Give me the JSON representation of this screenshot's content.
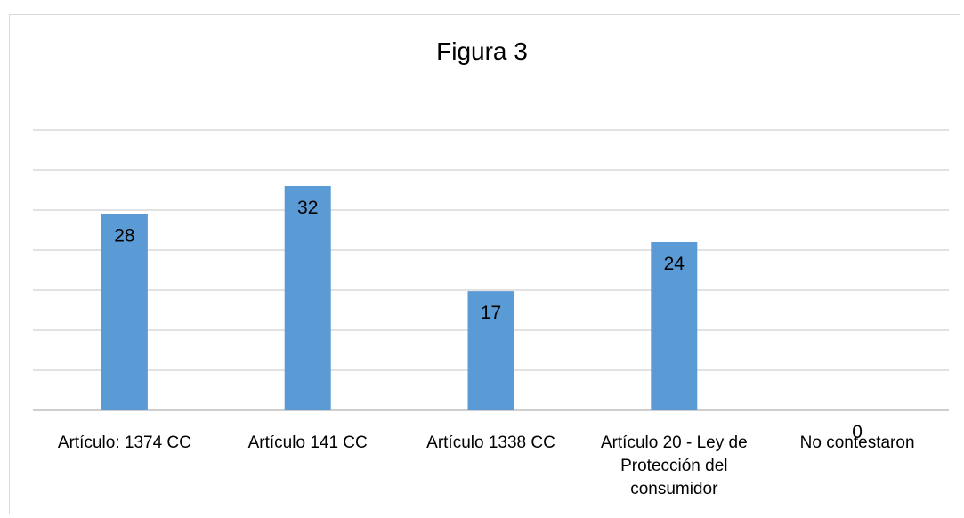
{
  "chart_data": {
    "type": "bar",
    "title": "Figura 3",
    "categories": [
      [
        "Artículo: 1374 CC"
      ],
      [
        "Artículo 141 CC"
      ],
      [
        "Artículo 1338 CC"
      ],
      [
        "Artículo 20 - Ley de",
        "Protección del",
        "consumidor"
      ],
      [
        "No contestaron"
      ]
    ],
    "values": [
      28,
      32,
      17,
      24,
      0
    ],
    "data_labels": [
      "28",
      "32",
      "17",
      "24",
      "0"
    ],
    "ylim": [
      0,
      40
    ],
    "y_gridlines": 7,
    "grid": true,
    "legend": "none",
    "bar_color": "#5b9bd5",
    "gridline_color": "#d9d9d9",
    "axis_color": "#bfbfbf",
    "xlabel": "",
    "ylabel": ""
  }
}
